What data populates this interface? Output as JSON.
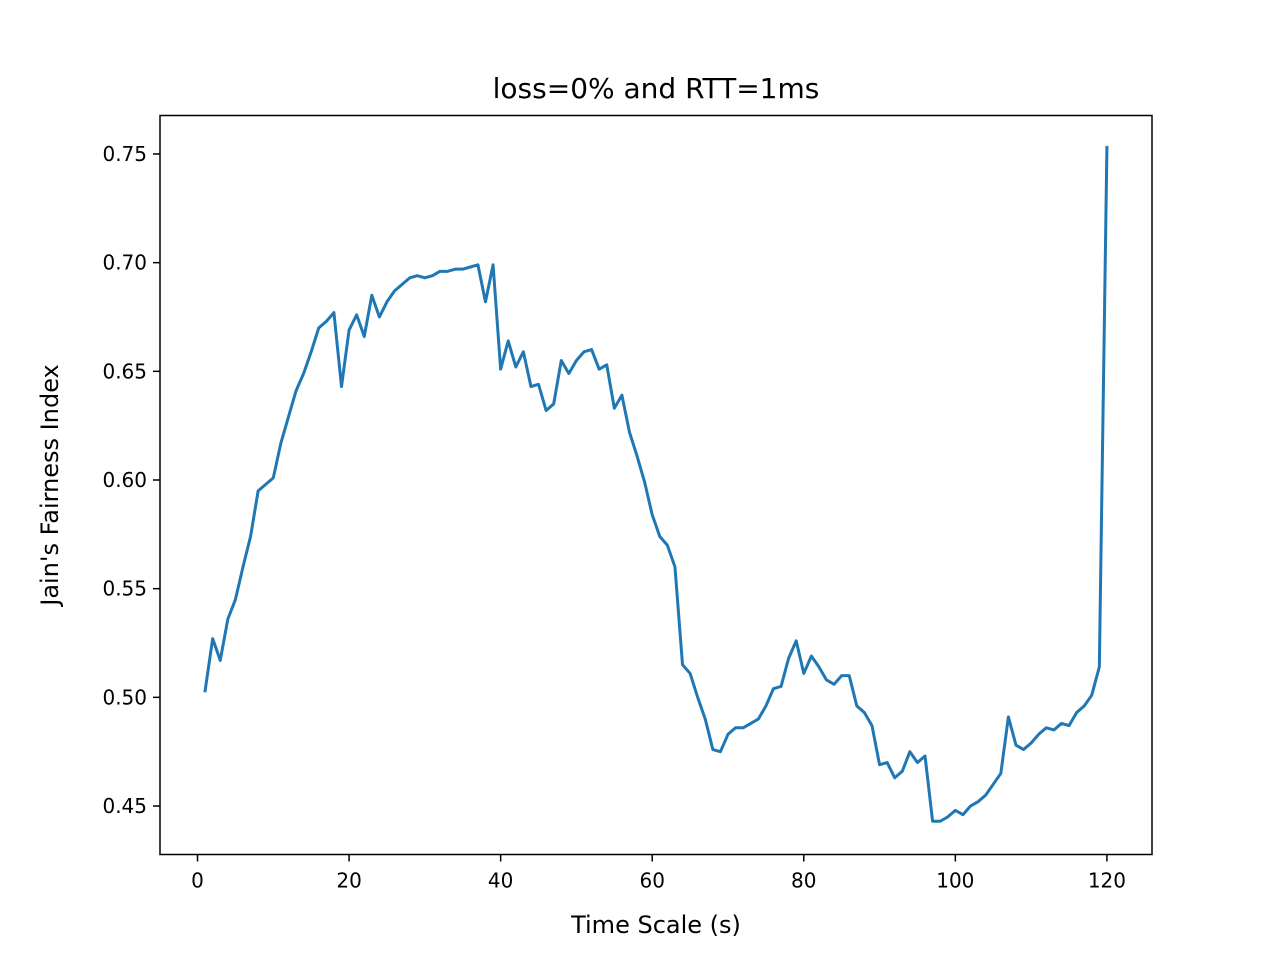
{
  "chart_data": {
    "type": "line",
    "title": "loss=0% and RTT=1ms",
    "xlabel": "Time Scale (s)",
    "ylabel": "Jain's Fairness Index",
    "xlim": [
      -4.95,
      125.95
    ],
    "ylim": [
      0.4277,
      0.7677
    ],
    "xticks": [
      0,
      20,
      40,
      60,
      80,
      100,
      120
    ],
    "yticks": [
      0.45,
      0.5,
      0.55,
      0.6,
      0.65,
      0.7,
      0.75
    ],
    "xtick_labels": [
      "0",
      "20",
      "40",
      "60",
      "80",
      "100",
      "120"
    ],
    "ytick_labels": [
      "0.45",
      "0.50",
      "0.55",
      "0.60",
      "0.65",
      "0.70",
      "0.75"
    ],
    "grid": false,
    "color": "#1f77b4",
    "series": [
      {
        "x": [
          1,
          2,
          3,
          4,
          5,
          6,
          7,
          8,
          9,
          10,
          11,
          12,
          13,
          14,
          15,
          16,
          17,
          18,
          19,
          20,
          21,
          22,
          23,
          24,
          25,
          26,
          27,
          28,
          29,
          30,
          31,
          32,
          33,
          34,
          35,
          36,
          37,
          38,
          39,
          40,
          41,
          42,
          43,
          44,
          45,
          46,
          47,
          48,
          49,
          50,
          51,
          52,
          53,
          54,
          55,
          56,
          57,
          58,
          59,
          60,
          61,
          62,
          63,
          64,
          65,
          66,
          67,
          68,
          69,
          70,
          71,
          72,
          73,
          74,
          75,
          76,
          77,
          78,
          79,
          80,
          81,
          82,
          83,
          84,
          85,
          86,
          87,
          88,
          89,
          90,
          91,
          92,
          93,
          94,
          95,
          96,
          97,
          98,
          99,
          100,
          101,
          102,
          103,
          104,
          105,
          106,
          107,
          108,
          109,
          110,
          111,
          112,
          113,
          114,
          115,
          116,
          117,
          118,
          119,
          120
        ],
        "values": [
          0.503,
          0.527,
          0.517,
          0.536,
          0.545,
          0.56,
          0.574,
          0.595,
          0.598,
          0.601,
          0.617,
          0.629,
          0.641,
          0.649,
          0.659,
          0.67,
          0.673,
          0.677,
          0.643,
          0.669,
          0.676,
          0.666,
          0.685,
          0.675,
          0.682,
          0.687,
          0.69,
          0.693,
          0.694,
          0.693,
          0.694,
          0.696,
          0.696,
          0.697,
          0.697,
          0.698,
          0.699,
          0.682,
          0.699,
          0.651,
          0.664,
          0.652,
          0.659,
          0.643,
          0.644,
          0.632,
          0.635,
          0.655,
          0.649,
          0.655,
          0.659,
          0.66,
          0.651,
          0.653,
          0.633,
          0.639,
          0.622,
          0.611,
          0.599,
          0.584,
          0.574,
          0.57,
          0.56,
          0.515,
          0.511,
          0.5,
          0.49,
          0.476,
          0.475,
          0.483,
          0.486,
          0.486,
          0.488,
          0.49,
          0.496,
          0.504,
          0.505,
          0.518,
          0.526,
          0.511,
          0.519,
          0.514,
          0.508,
          0.506,
          0.51,
          0.51,
          0.496,
          0.493,
          0.487,
          0.469,
          0.47,
          0.463,
          0.466,
          0.475,
          0.47,
          0.473,
          0.443,
          0.443,
          0.445,
          0.448,
          0.446,
          0.45,
          0.452,
          0.455,
          0.46,
          0.465,
          0.491,
          0.478,
          0.476,
          0.479,
          0.483,
          0.486,
          0.485,
          0.488,
          0.487,
          0.493,
          0.496,
          0.501,
          0.514,
          0.753
        ]
      }
    ]
  }
}
